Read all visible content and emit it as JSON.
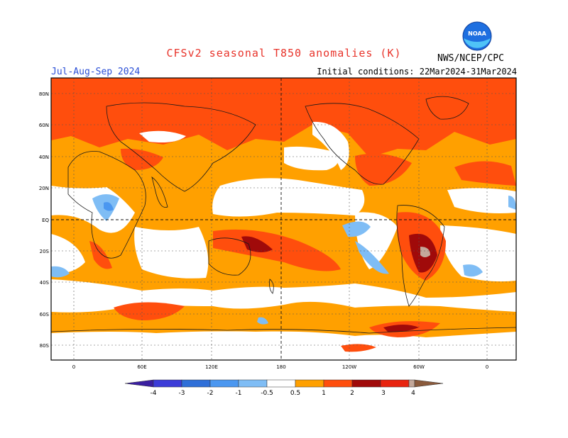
{
  "header": {
    "title": "CFSv2 seasonal T850 anomalies (K)",
    "season": "Jul-Aug-Sep 2024",
    "initial_conditions": "Initial conditions: 22Mar2024-31Mar2024",
    "agency": "NWS/NCEP/CPC",
    "logo_text": "NOAA"
  },
  "map": {
    "lat_labels": [
      "80N",
      "60N",
      "40N",
      "20N",
      "EQ",
      "20S",
      "40S",
      "60S",
      "80S"
    ],
    "lon_labels": [
      "0",
      "60E",
      "120E",
      "180",
      "120W",
      "60W",
      "0"
    ]
  },
  "legend": {
    "labels": [
      "-4",
      "-3",
      "-2",
      "-1",
      "-0.5",
      "0.5",
      "1",
      "2",
      "3",
      "4"
    ],
    "colors": {
      "lt_m4": "#3a1fa0",
      "m4_m3": "#3c3cd8",
      "m3_m2": "#2f6fd8",
      "m2_m1": "#4b97f0",
      "m1_m05": "#7fbdf5",
      "neutral": "#ffffff",
      "p05_1": "#ffa000",
      "p1_2": "#ff4e0d",
      "p2_3": "#e8230f",
      "p3_4": "#a00a0a",
      "p4_5": "#c4a89a",
      "gt_5": "#8a5a3c"
    }
  }
}
